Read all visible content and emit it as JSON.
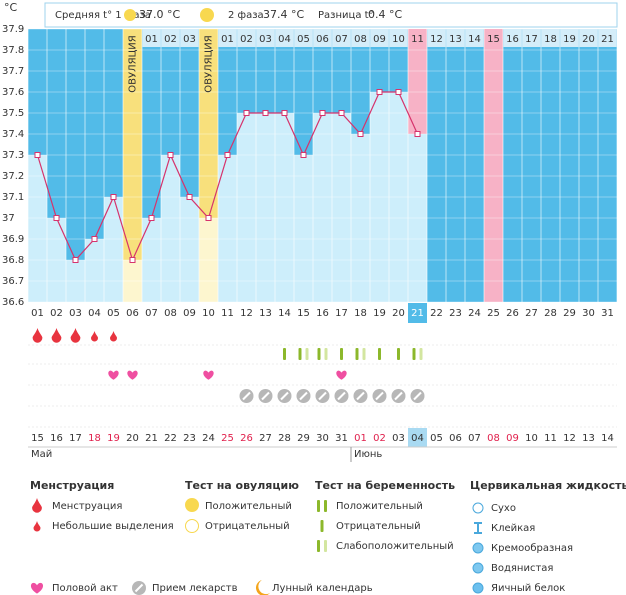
{
  "chart_data": {
    "type": "line",
    "y_unit": "°C",
    "ylim": [
      36.6,
      37.9
    ],
    "yticks": [
      36.6,
      36.7,
      36.8,
      36.9,
      37,
      37.1,
      37.2,
      37.3,
      37.4,
      37.5,
      37.6,
      37.7,
      37.8,
      37.9
    ],
    "categories": [
      "01",
      "02",
      "03",
      "04",
      "05",
      "06",
      "07",
      "08",
      "09",
      "10",
      "11",
      "12",
      "13",
      "14",
      "15",
      "16",
      "17",
      "18",
      "19",
      "20",
      "21",
      "22",
      "23",
      "24",
      "25",
      "26",
      "27",
      "28",
      "29",
      "30",
      "31"
    ],
    "phase_days": [
      null,
      null,
      null,
      null,
      null,
      null,
      "01",
      "02",
      "03",
      null,
      "01",
      "02",
      "03",
      "04",
      "05",
      "06",
      "07",
      "08",
      "09",
      "10",
      "11",
      "12",
      "13",
      "14",
      "15",
      "16",
      "17",
      "18",
      "19",
      "20",
      "21"
    ],
    "values": [
      37.3,
      37,
      36.8,
      36.9,
      37.1,
      36.8,
      37,
      37.3,
      37.1,
      37,
      37.3,
      37.5,
      37.5,
      37.5,
      37.3,
      37.5,
      37.5,
      37.4,
      37.6,
      37.6,
      37.4,
      null,
      null,
      null,
      null,
      null,
      null,
      null,
      null,
      null,
      null
    ],
    "color": "#d6336c",
    "grid": true,
    "ovulation": [
      "06",
      "10"
    ],
    "ovulation_label": "ОВУЛЯЦИЯ",
    "pink_days": [
      "21",
      "25"
    ],
    "today": "21",
    "dates": [
      "15",
      "16",
      "17",
      "18",
      "19",
      "20",
      "21",
      "22",
      "23",
      "24",
      "25",
      "26",
      "27",
      "28",
      "29",
      "30",
      "31",
      "01",
      "02",
      "03",
      "04",
      "05",
      "06",
      "07",
      "08",
      "09",
      "10",
      "11",
      "12",
      "13",
      "14"
    ],
    "weekend": [
      false,
      false,
      false,
      true,
      true,
      false,
      false,
      false,
      false,
      false,
      true,
      true,
      false,
      false,
      false,
      false,
      false,
      true,
      true,
      false,
      false,
      false,
      false,
      false,
      true,
      true,
      false,
      false,
      false,
      false,
      false
    ],
    "today_date": "04",
    "months": [
      {
        "label": "Май",
        "day": "15"
      },
      {
        "label": "Июнь",
        "day": "01"
      }
    ],
    "menstruation_days": [
      "01",
      "02",
      "03"
    ],
    "spotting_days": [
      "04",
      "05"
    ],
    "intercourse_days": [
      "05",
      "06",
      "10",
      "17"
    ],
    "pregnancy_tests": [
      {
        "day": "14",
        "result": "negative"
      },
      {
        "day": "15",
        "result": "weak"
      },
      {
        "day": "16",
        "result": "weak"
      },
      {
        "day": "17",
        "result": "negative"
      },
      {
        "day": "18",
        "result": "weak"
      },
      {
        "day": "19",
        "result": "negative"
      },
      {
        "day": "20",
        "result": "negative"
      },
      {
        "day": "21",
        "result": "weak"
      }
    ],
    "medication_days": [
      "12",
      "13",
      "14",
      "15",
      "16",
      "17",
      "18",
      "19",
      "20",
      "21"
    ]
  },
  "header": {
    "phase1_label": "Средняя t° 1 фаза",
    "phase1_value": "37.0 °C",
    "phase2_label": "2 фаза",
    "phase2_value": "37.4 °C",
    "difference_label": "Разница t°",
    "difference_value": "0.4 °C"
  },
  "legend": {
    "menstruation": {
      "title": "Менструация",
      "items": [
        "Менструация",
        "Небольшие выделения"
      ]
    },
    "ovulation_test": {
      "title": "Тест на овуляцию",
      "items": [
        "Положительный",
        "Отрицательный"
      ]
    },
    "pregnancy_test": {
      "title": "Тест на беременность",
      "items": [
        "Положительный",
        "Отрицательный",
        "Слабоположительный"
      ]
    },
    "cervical_fluid": {
      "title": "Цервикальная жидкость",
      "items": [
        "Сухо",
        "Клейкая",
        "Кремообразная",
        "Водянистая",
        "Яичный белок"
      ]
    },
    "other": [
      "Половой акт",
      "Прием лекарств",
      "Лунный календарь"
    ]
  }
}
